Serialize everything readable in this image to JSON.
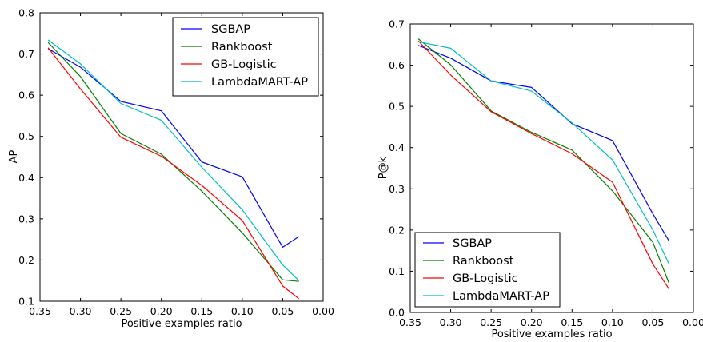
{
  "chart_data": [
    {
      "type": "line",
      "xlabel": "Positive examples ratio",
      "ylabel": "AP",
      "xlim": [
        0.35,
        0.0
      ],
      "ylim": [
        0.1,
        0.8
      ],
      "x_inverted": true,
      "xticks": [
        0.35,
        0.3,
        0.25,
        0.2,
        0.15,
        0.1,
        0.05,
        0.0
      ],
      "xtick_labels": [
        "0.35",
        "0.30",
        "0.25",
        "0.20",
        "0.15",
        "0.10",
        "0.05",
        "0.00"
      ],
      "yticks": [
        0.1,
        0.2,
        0.3,
        0.4,
        0.5,
        0.6,
        0.7,
        0.8
      ],
      "ytick_labels": [
        "0.1",
        "0.2",
        "0.3",
        "0.4",
        "0.5",
        "0.6",
        "0.7",
        "0.8"
      ],
      "grid": false,
      "legend_position": "top-right",
      "series": [
        {
          "name": "SGBAP",
          "color": "#0000ff",
          "x": [
            0.34,
            0.3,
            0.25,
            0.2,
            0.15,
            0.1,
            0.05,
            0.03
          ],
          "y": [
            0.713,
            0.668,
            0.585,
            0.562,
            0.438,
            0.402,
            0.231,
            0.257
          ]
        },
        {
          "name": "Rankboost",
          "color": "#008000",
          "x": [
            0.34,
            0.3,
            0.25,
            0.2,
            0.15,
            0.1,
            0.05,
            0.03
          ],
          "y": [
            0.728,
            0.645,
            0.507,
            0.457,
            0.367,
            0.266,
            0.152,
            0.148
          ]
        },
        {
          "name": "GB-Logistic",
          "color": "#ff0000",
          "x": [
            0.34,
            0.3,
            0.25,
            0.2,
            0.15,
            0.1,
            0.05,
            0.03
          ],
          "y": [
            0.715,
            0.615,
            0.498,
            0.452,
            0.381,
            0.296,
            0.137,
            0.106
          ]
        },
        {
          "name": "LambdaMART-AP",
          "color": "#00bfbf",
          "x": [
            0.34,
            0.3,
            0.25,
            0.2,
            0.15,
            0.1,
            0.05,
            0.03
          ],
          "y": [
            0.734,
            0.676,
            0.58,
            0.539,
            0.425,
            0.322,
            0.188,
            0.15
          ]
        }
      ]
    },
    {
      "type": "line",
      "xlabel": "Positive examples ratio",
      "ylabel": "P@k",
      "xlim": [
        0.35,
        0.0
      ],
      "ylim": [
        0.0,
        0.7
      ],
      "x_inverted": true,
      "xticks": [
        0.35,
        0.3,
        0.25,
        0.2,
        0.15,
        0.1,
        0.05,
        0.0
      ],
      "xtick_labels": [
        "0.35",
        "0.30",
        "0.25",
        "0.20",
        "0.15",
        "0.10",
        "0.05",
        "0.00"
      ],
      "yticks": [
        0.0,
        0.1,
        0.2,
        0.3,
        0.4,
        0.5,
        0.6,
        0.7
      ],
      "ytick_labels": [
        "0.0",
        "0.1",
        "0.2",
        "0.3",
        "0.4",
        "0.5",
        "0.6",
        "0.7"
      ],
      "grid": false,
      "legend_position": "bottom-left",
      "series": [
        {
          "name": "SGBAP",
          "color": "#0000ff",
          "x": [
            0.34,
            0.3,
            0.25,
            0.2,
            0.15,
            0.1,
            0.05,
            0.03
          ],
          "y": [
            0.648,
            0.617,
            0.562,
            0.546,
            0.458,
            0.417,
            0.239,
            0.173
          ]
        },
        {
          "name": "Rankboost",
          "color": "#008000",
          "x": [
            0.34,
            0.3,
            0.25,
            0.2,
            0.15,
            0.1,
            0.05,
            0.03
          ],
          "y": [
            0.664,
            0.601,
            0.489,
            0.437,
            0.394,
            0.295,
            0.17,
            0.07
          ]
        },
        {
          "name": "GB-Logistic",
          "color": "#ff0000",
          "x": [
            0.34,
            0.3,
            0.25,
            0.2,
            0.15,
            0.1,
            0.05,
            0.03
          ],
          "y": [
            0.659,
            0.576,
            0.487,
            0.434,
            0.385,
            0.316,
            0.117,
            0.056
          ]
        },
        {
          "name": "LambdaMART-AP",
          "color": "#00bfbf",
          "x": [
            0.34,
            0.3,
            0.25,
            0.2,
            0.15,
            0.1,
            0.05,
            0.03
          ],
          "y": [
            0.657,
            0.641,
            0.562,
            0.537,
            0.46,
            0.37,
            0.2,
            0.117
          ]
        }
      ]
    }
  ]
}
